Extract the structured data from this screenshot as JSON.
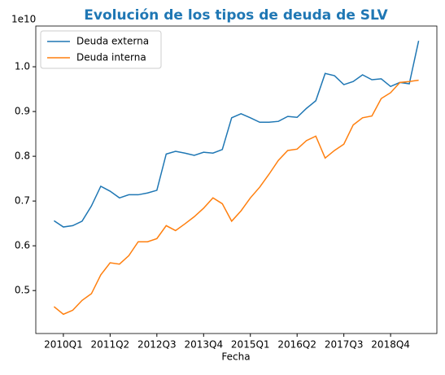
{
  "chart_data": {
    "type": "line",
    "title": "Evolución de los tipos de deuda de SLV",
    "xlabel": "Fecha",
    "y_offset_label": "1e10",
    "categories": [
      null,
      "2010Q1",
      null,
      null,
      null,
      null,
      "2011Q2",
      null,
      null,
      null,
      null,
      "2012Q3",
      null,
      null,
      null,
      null,
      "2013Q4",
      null,
      null,
      null,
      null,
      "2015Q1",
      null,
      null,
      null,
      null,
      "2016Q2",
      null,
      null,
      null,
      null,
      "2017Q3",
      null,
      null,
      null,
      null,
      "2018Q4",
      null,
      null,
      null
    ],
    "series": [
      {
        "name": "Deuda externa",
        "color": "#1f77b4",
        "values": [
          0.656,
          0.642,
          0.645,
          0.655,
          0.689,
          0.733,
          0.722,
          0.707,
          0.714,
          0.714,
          0.718,
          0.724,
          0.805,
          0.811,
          0.807,
          0.802,
          0.809,
          0.807,
          0.815,
          0.886,
          0.895,
          0.886,
          0.876,
          0.876,
          0.878,
          0.889,
          0.887,
          0.907,
          0.924,
          0.985,
          0.98,
          0.96,
          0.967,
          0.982,
          0.971,
          0.973,
          0.956,
          0.965,
          0.962,
          1.058
        ]
      },
      {
        "name": "Deuda interna",
        "color": "#ff7f0e",
        "values": [
          0.464,
          0.447,
          0.456,
          0.478,
          0.493,
          0.535,
          0.562,
          0.559,
          0.578,
          0.609,
          0.609,
          0.616,
          0.645,
          0.634,
          0.649,
          0.665,
          0.684,
          0.707,
          0.694,
          0.655,
          0.678,
          0.707,
          0.731,
          0.76,
          0.791,
          0.813,
          0.816,
          0.835,
          0.845,
          0.796,
          0.813,
          0.827,
          0.87,
          0.886,
          0.89,
          0.929,
          0.942,
          0.965,
          0.967,
          0.97
        ]
      }
    ],
    "ylim": [
      0.404,
      1.091
    ],
    "yticks": [
      0.5,
      0.6,
      0.7,
      0.8,
      0.9,
      {
        "value": 1,
        "label": "1.0"
      }
    ],
    "legend": "upper left"
  }
}
